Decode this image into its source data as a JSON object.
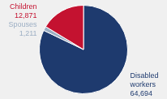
{
  "chart_data": {
    "type": "pie",
    "categories": [
      "Disabled\nworkers",
      "Spouses",
      "Children"
    ],
    "values": [
      64694,
      1211,
      12871
    ],
    "colors": [
      "#1e3a6e",
      "#9dafc4",
      "#c41230"
    ],
    "data_labels": true,
    "value_labels": [
      "64,694",
      "1,211",
      "12,871"
    ]
  }
}
